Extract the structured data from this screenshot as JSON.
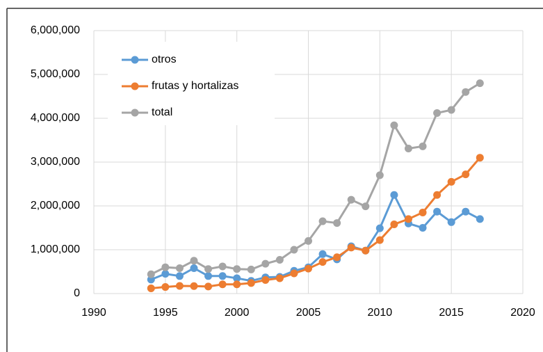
{
  "chart_data": {
    "type": "line",
    "x": [
      1994,
      1995,
      1996,
      1997,
      1998,
      1999,
      2000,
      2001,
      2002,
      2003,
      2004,
      2005,
      2006,
      2007,
      2008,
      2009,
      2010,
      2011,
      2012,
      2013,
      2014,
      2015,
      2016,
      2017
    ],
    "series": [
      {
        "name": "otros",
        "color": "#5b9bd5",
        "values": [
          320000,
          450000,
          400000,
          580000,
          400000,
          400000,
          350000,
          290000,
          370000,
          380000,
          520000,
          600000,
          900000,
          780000,
          1080000,
          980000,
          1490000,
          2250000,
          1600000,
          1500000,
          1870000,
          1630000,
          1870000,
          1700000
        ]
      },
      {
        "name": "frutas y hortalizas",
        "color": "#ed7d31",
        "values": [
          120000,
          150000,
          175000,
          170000,
          160000,
          210000,
          210000,
          240000,
          310000,
          350000,
          460000,
          570000,
          720000,
          830000,
          1050000,
          980000,
          1220000,
          1580000,
          1700000,
          1850000,
          2250000,
          2550000,
          2720000,
          3100000
        ]
      },
      {
        "name": "total",
        "color": "#a5a5a5",
        "values": [
          440000,
          600000,
          580000,
          750000,
          560000,
          620000,
          560000,
          550000,
          680000,
          770000,
          1000000,
          1200000,
          1650000,
          1610000,
          2140000,
          1990000,
          2700000,
          3840000,
          3310000,
          3360000,
          4120000,
          4190000,
          4600000,
          4800000
        ]
      }
    ],
    "xlim": [
      1990,
      2020
    ],
    "xticks": [
      1990,
      1995,
      2000,
      2005,
      2010,
      2015,
      2020
    ],
    "ylim": [
      0,
      6000000
    ],
    "yticks": [
      0,
      {
        "value": 1000000,
        "label": "1,000,000"
      },
      {
        "value": 2000000,
        "label": "2,000,000"
      },
      {
        "value": 3000000,
        "label": "3,000,000"
      },
      {
        "value": 4000000,
        "label": "4,000,000"
      },
      {
        "value": 5000000,
        "label": "5,000,000"
      },
      {
        "value": 6000000,
        "label": "6,000,000"
      }
    ],
    "grid": true,
    "legend": "upper-left"
  }
}
